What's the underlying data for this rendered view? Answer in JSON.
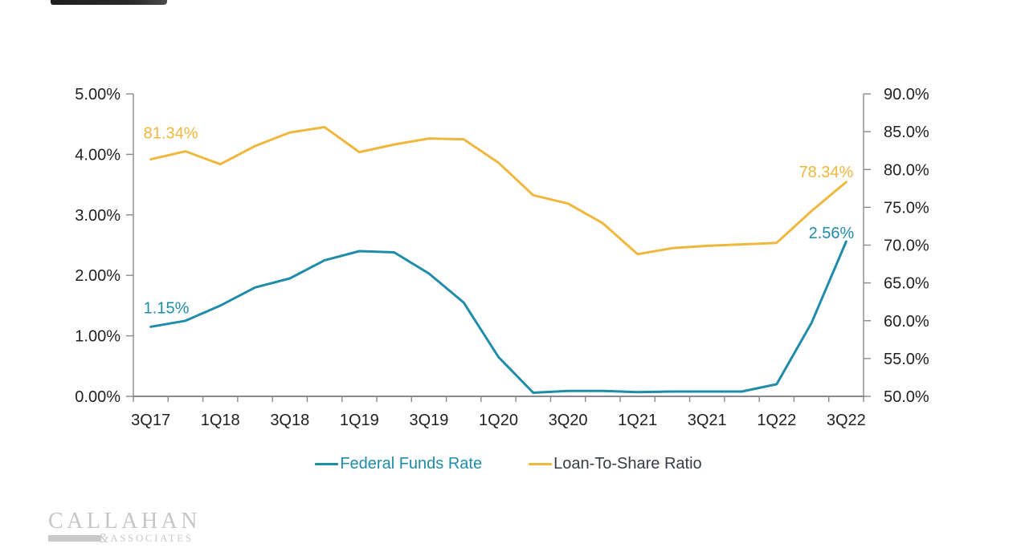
{
  "colors": {
    "federal_funds_rate": "#1F8CA9",
    "loan_to_share": "#EFB73D",
    "axis_line": "#8A8A8A",
    "tick_label": "#212121",
    "legend_dark_text": "#383C46",
    "logo_gray": "#C6C6C8"
  },
  "legend": [
    {
      "label": "Federal Funds Rate",
      "line_color": "#1F8CA9",
      "label_color": "#1F8CA9"
    },
    {
      "label": "Loan-To-Share Ratio",
      "line_color": "#EFB73D",
      "label_color": "#383C46"
    }
  ],
  "logo": {
    "name": "CALLAHAN",
    "amp": "&",
    "suffix": "ASSOCIATES"
  },
  "chart_data": {
    "type": "line",
    "categories": [
      "3Q17",
      "4Q17",
      "1Q18",
      "2Q18",
      "3Q18",
      "4Q18",
      "1Q19",
      "2Q19",
      "3Q19",
      "4Q19",
      "1Q20",
      "2Q20",
      "3Q20",
      "4Q20",
      "1Q21",
      "2Q21",
      "3Q21",
      "4Q21",
      "1Q22",
      "2Q22",
      "3Q22"
    ],
    "x_tick_labels": [
      "3Q17",
      "1Q18",
      "3Q18",
      "1Q19",
      "3Q19",
      "1Q20",
      "3Q20",
      "1Q21",
      "3Q21",
      "1Q22",
      "3Q22"
    ],
    "left_axis": {
      "min": 0,
      "max": 5,
      "step": 1,
      "tick_labels": [
        "0.00%",
        "1.00%",
        "2.00%",
        "3.00%",
        "4.00%",
        "5.00%"
      ]
    },
    "right_axis": {
      "min": 50,
      "max": 90,
      "step": 5,
      "tick_labels": [
        "50.0%",
        "55.0%",
        "60.0%",
        "65.0%",
        "70.0%",
        "75.0%",
        "80.0%",
        "85.0%",
        "90.0%"
      ]
    },
    "grid": false,
    "legend_position": "bottom",
    "series": [
      {
        "name": "Federal Funds Rate",
        "axis": "left",
        "color": "#1F8CA9",
        "values": [
          1.15,
          1.25,
          1.5,
          1.8,
          1.95,
          2.25,
          2.4,
          2.38,
          2.03,
          1.55,
          0.65,
          0.06,
          0.09,
          0.09,
          0.07,
          0.08,
          0.08,
          0.08,
          0.2,
          1.21,
          2.56
        ],
        "point_labels": [
          {
            "index": 0,
            "text": "1.15%",
            "anchor": "start",
            "dx": -9,
            "dy": -17
          },
          {
            "index": 20,
            "text": "2.56%",
            "anchor": "end",
            "dx": 10,
            "dy": -4
          }
        ]
      },
      {
        "name": "Loan-To-Share Ratio",
        "axis": "right",
        "color": "#EFB73D",
        "values": [
          81.34,
          82.4,
          80.7,
          83.1,
          84.9,
          85.6,
          82.3,
          83.3,
          84.1,
          84.0,
          80.9,
          76.6,
          75.5,
          72.9,
          68.8,
          69.6,
          69.9,
          70.1,
          70.3,
          74.5,
          78.34
        ],
        "point_labels": [
          {
            "index": 0,
            "text": "81.34%",
            "anchor": "start",
            "dx": -9,
            "dy": -26
          },
          {
            "index": 20,
            "text": "78.34%",
            "anchor": "end",
            "dx": 9,
            "dy": -6
          }
        ]
      }
    ]
  }
}
